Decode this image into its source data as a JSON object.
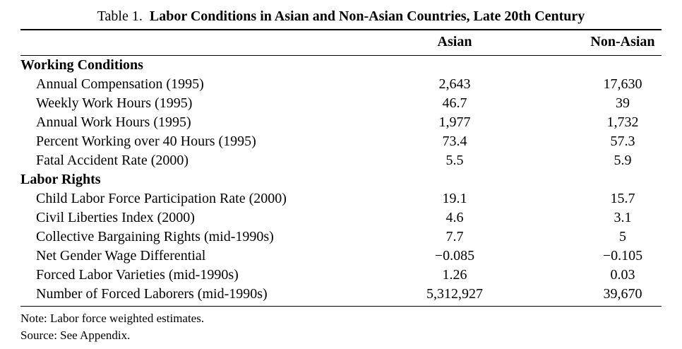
{
  "title": {
    "prefix": "Table 1.",
    "main": "Labor Conditions in Asian and Non-Asian Countries, Late 20th Century"
  },
  "columns": {
    "asian": "Asian",
    "nonasian": "Non-Asian"
  },
  "table": {
    "rows": [
      {
        "type": "section",
        "label": "Working Conditions",
        "asian": "",
        "nonasian": ""
      },
      {
        "type": "data",
        "label": "Annual Compensation (1995)",
        "asian": "2,643",
        "nonasian": "17,630"
      },
      {
        "type": "data",
        "label": "Weekly Work Hours (1995)",
        "asian": "46.7",
        "nonasian": "39"
      },
      {
        "type": "data",
        "label": "Annual Work Hours (1995)",
        "asian": "1,977",
        "nonasian": "1,732"
      },
      {
        "type": "data",
        "label": "Percent Working over 40 Hours (1995)",
        "asian": "73.4",
        "nonasian": "57.3"
      },
      {
        "type": "data",
        "label": "Fatal Accident Rate (2000)",
        "asian": "5.5",
        "nonasian": "5.9"
      },
      {
        "type": "section",
        "label": "Labor Rights",
        "asian": "",
        "nonasian": ""
      },
      {
        "type": "data",
        "label": "Child Labor Force Participation Rate (2000)",
        "asian": "19.1",
        "nonasian": "15.7"
      },
      {
        "type": "data",
        "label": "Civil Liberties Index (2000)",
        "asian": "4.6",
        "nonasian": "3.1"
      },
      {
        "type": "data",
        "label": "Collective Bargaining Rights (mid-1990s)",
        "asian": "7.7",
        "nonasian": "5"
      },
      {
        "type": "data",
        "label": "Net Gender Wage Differential",
        "asian": "−0.085",
        "nonasian": "−0.105"
      },
      {
        "type": "data",
        "label": "Forced Labor Varieties (mid-1990s)",
        "asian": "1.26",
        "nonasian": "0.03"
      },
      {
        "type": "data",
        "label": "Number of Forced Laborers (mid-1990s)",
        "asian": "5,312,927",
        "nonasian": "39,670"
      }
    ]
  },
  "notes": {
    "note": "Note: Labor force weighted estimates.",
    "source": "Source: See Appendix."
  },
  "chart_data": {
    "type": "table",
    "title": "Table 1. Labor Conditions in Asian and Non-Asian Countries, Late 20th Century",
    "columns": [
      "",
      "Asian",
      "Non-Asian"
    ],
    "sections": [
      {
        "section": "Working Conditions",
        "rows": [
          [
            "Annual Compensation (1995)",
            2643,
            17630
          ],
          [
            "Weekly Work Hours (1995)",
            46.7,
            39
          ],
          [
            "Annual Work Hours (1995)",
            1977,
            1732
          ],
          [
            "Percent Working over 40 Hours (1995)",
            73.4,
            57.3
          ],
          [
            "Fatal Accident Rate (2000)",
            5.5,
            5.9
          ]
        ]
      },
      {
        "section": "Labor Rights",
        "rows": [
          [
            "Child Labor Force Participation Rate (2000)",
            19.1,
            15.7
          ],
          [
            "Civil Liberties Index (2000)",
            4.6,
            3.1
          ],
          [
            "Collective Bargaining Rights (mid-1990s)",
            7.7,
            5
          ],
          [
            "Net Gender Wage Differential",
            -0.085,
            -0.105
          ],
          [
            "Forced Labor Varieties (mid-1990s)",
            1.26,
            0.03
          ],
          [
            "Number of Forced Laborers (mid-1990s)",
            5312927,
            39670
          ]
        ]
      }
    ],
    "notes": [
      "Note: Labor force weighted estimates.",
      "Source: See Appendix."
    ]
  }
}
